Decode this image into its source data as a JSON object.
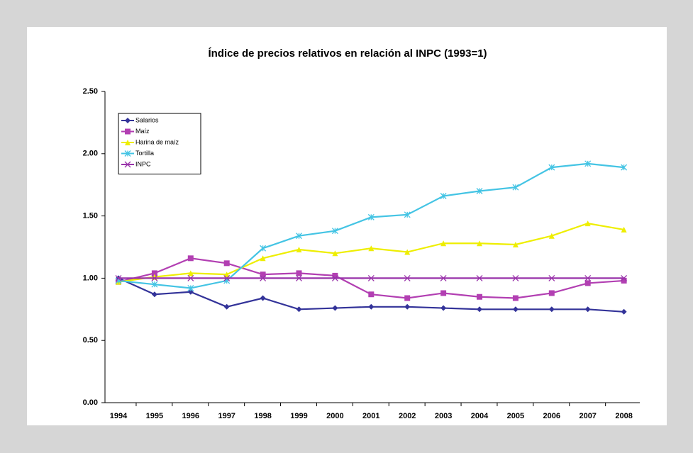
{
  "chart_data": {
    "type": "line",
    "title": "Índice de precios relativos en relación al INPC (1993=1)",
    "categories": [
      "1994",
      "1995",
      "1996",
      "1997",
      "1998",
      "1999",
      "2000",
      "2001",
      "2002",
      "2003",
      "2004",
      "2005",
      "2006",
      "2007",
      "2008"
    ],
    "series": [
      {
        "name": "Salarios",
        "color": "#333399",
        "marker": "diamond",
        "values": [
          1.0,
          0.87,
          0.89,
          0.77,
          0.84,
          0.75,
          0.76,
          0.77,
          0.77,
          0.76,
          0.75,
          0.75,
          0.75,
          0.75,
          0.73
        ]
      },
      {
        "name": "Maíz",
        "color": "#b23fb2",
        "marker": "square",
        "values": [
          0.97,
          1.04,
          1.16,
          1.12,
          1.03,
          1.04,
          1.02,
          0.87,
          0.84,
          0.88,
          0.85,
          0.84,
          0.88,
          0.96,
          0.98
        ]
      },
      {
        "name": "Harina de maíz",
        "color": "#eeee00",
        "marker": "triangle",
        "values": [
          0.97,
          1.01,
          1.04,
          1.03,
          1.16,
          1.23,
          1.2,
          1.24,
          1.21,
          1.28,
          1.28,
          1.27,
          1.34,
          1.44,
          1.39
        ]
      },
      {
        "name": "Tortilla",
        "color": "#44c4e4",
        "marker": "star",
        "values": [
          0.98,
          0.95,
          0.92,
          0.98,
          1.24,
          1.34,
          1.38,
          1.49,
          1.51,
          1.66,
          1.7,
          1.73,
          1.89,
          1.92,
          1.89
        ]
      },
      {
        "name": "INPC",
        "color": "#9933aa",
        "marker": "x",
        "values": [
          1.0,
          1.0,
          1.0,
          1.0,
          1.0,
          1.0,
          1.0,
          1.0,
          1.0,
          1.0,
          1.0,
          1.0,
          1.0,
          1.0,
          1.0
        ]
      }
    ],
    "ylim": [
      0,
      2.5
    ],
    "yticks": [
      {
        "value": 0,
        "label": "0.00"
      },
      {
        "value": 0.5,
        "label": "0.50"
      },
      {
        "value": 1,
        "label": "1.00"
      },
      {
        "value": 1.5,
        "label": "1.50"
      },
      {
        "value": 2,
        "label": "2.00"
      },
      {
        "value": 2.5,
        "label": "2.50"
      }
    ],
    "legend": "top-left"
  }
}
